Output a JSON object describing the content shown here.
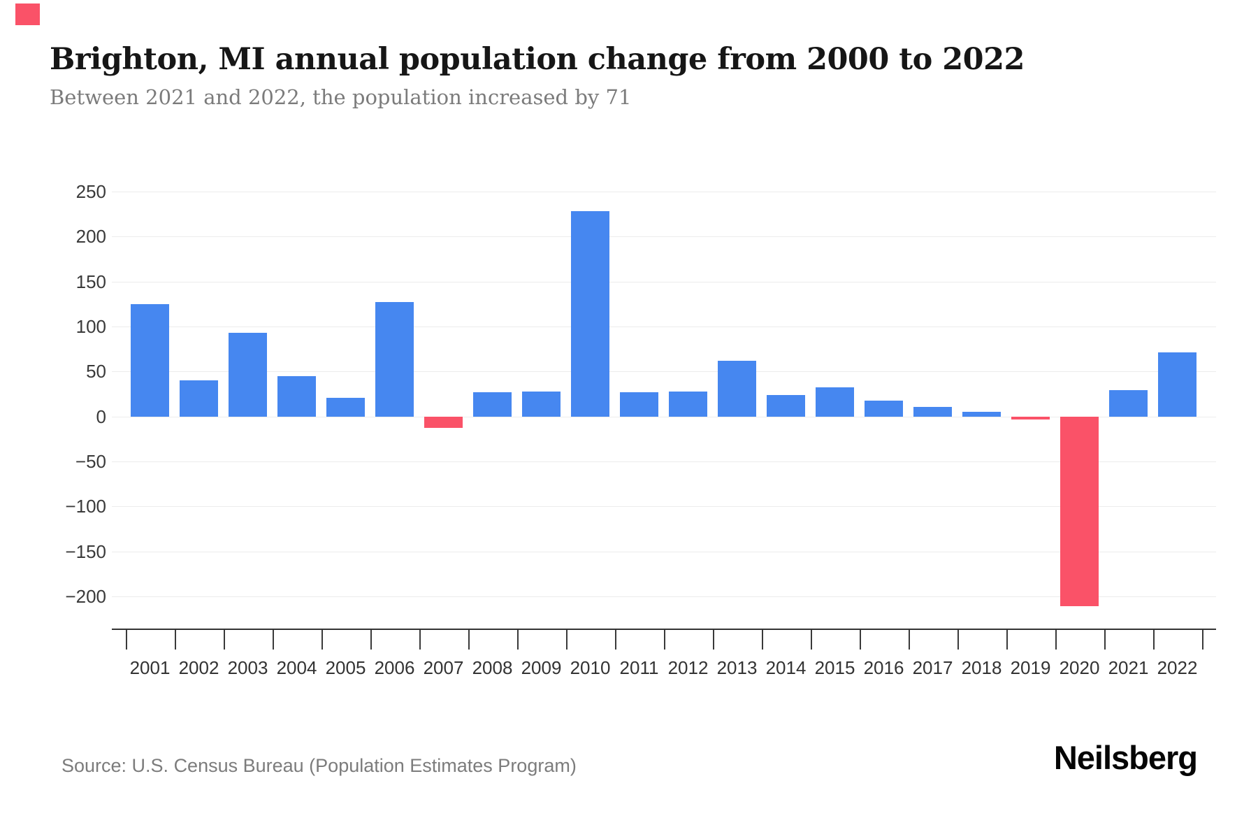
{
  "accent": {
    "top_left_swatch_color": "#FA5268"
  },
  "header": {
    "title": "Brighton, MI annual population change from 2000 to 2022",
    "subtitle": "Between 2021 and 2022, the population increased by 71"
  },
  "chart_data": {
    "type": "bar",
    "categories": [
      "2001",
      "2002",
      "2003",
      "2004",
      "2005",
      "2006",
      "2007",
      "2008",
      "2009",
      "2010",
      "2011",
      "2012",
      "2013",
      "2014",
      "2015",
      "2016",
      "2017",
      "2018",
      "2019",
      "2020",
      "2021",
      "2022"
    ],
    "values": [
      125,
      40,
      93,
      45,
      21,
      127,
      -13,
      27,
      28,
      228,
      27,
      28,
      62,
      24,
      32,
      18,
      11,
      5,
      -3,
      -211,
      29,
      71
    ],
    "title": "Brighton, MI annual population change from 2000 to 2022",
    "subtitle": "Between 2021 and 2022, the population increased by 71",
    "xlabel": "",
    "ylabel": "",
    "ylim": [
      -237,
      250
    ],
    "yticks": [
      250,
      200,
      150,
      100,
      50,
      0,
      -50,
      -100,
      -150,
      -200
    ],
    "grid": "horizontal",
    "legend": "none",
    "colors": {
      "positive": "#4687F0",
      "negative": "#FA5268"
    }
  },
  "footer": {
    "source": "Source: U.S. Census Bureau (Population Estimates Program)",
    "brand": "Neilsberg"
  }
}
